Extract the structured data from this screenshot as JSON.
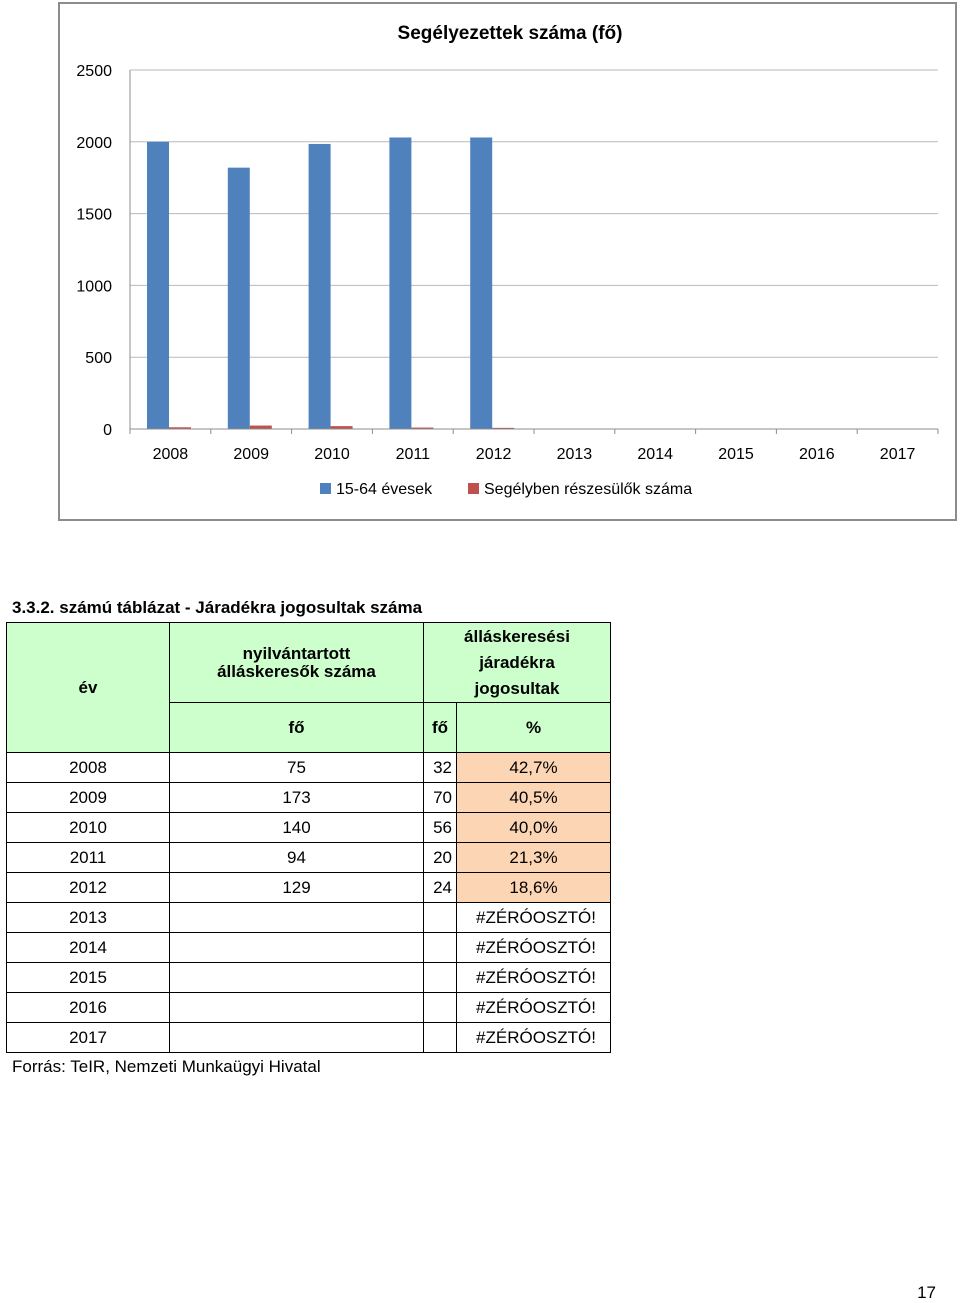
{
  "chart_data": {
    "type": "bar",
    "title": "Segélyezettek száma (fő)",
    "categories": [
      "2008",
      "2009",
      "2010",
      "2011",
      "2012",
      "2013",
      "2014",
      "2015",
      "2016",
      "2017"
    ],
    "series": [
      {
        "name": "15-64 évesek",
        "color": "#4f81bd",
        "values": [
          2000,
          1820,
          1985,
          2030,
          2030,
          null,
          null,
          null,
          null,
          null
        ]
      },
      {
        "name": "Segélyben részesülők száma",
        "color": "#c0504d",
        "values": [
          12,
          24,
          20,
          10,
          8,
          null,
          null,
          null,
          null,
          null
        ]
      }
    ],
    "ylim": [
      0,
      2500
    ],
    "yticks": [
      0,
      500,
      1000,
      1500,
      2000,
      2500
    ],
    "grid": true,
    "legend": "bottom"
  },
  "table": {
    "caption": "3.3.2. számú táblázat - Járadékra jogosultak száma",
    "col_year": "év",
    "col_registered": "nyilvántartott álláskeresők száma",
    "col_eligible": "álláskeresési járadékra jogosultak",
    "unit_registered": "fő",
    "unit_eligible": "fő",
    "unit_percent": "%",
    "rows": [
      {
        "year": "2008",
        "registered": "75",
        "eligible": "32",
        "percent": "42,7%"
      },
      {
        "year": "2009",
        "registered": "173",
        "eligible": "70",
        "percent": "40,5%"
      },
      {
        "year": "2010",
        "registered": "140",
        "eligible": "56",
        "percent": "40,0%"
      },
      {
        "year": "2011",
        "registered": "94",
        "eligible": "20",
        "percent": "21,3%"
      },
      {
        "year": "2012",
        "registered": "129",
        "eligible": "24",
        "percent": "18,6%"
      },
      {
        "year": "2013",
        "registered": "",
        "eligible": "",
        "percent": "#ZÉRÓOSZTÓ!"
      },
      {
        "year": "2014",
        "registered": "",
        "eligible": "",
        "percent": "#ZÉRÓOSZTÓ!"
      },
      {
        "year": "2015",
        "registered": "",
        "eligible": "",
        "percent": "#ZÉRÓOSZTÓ!"
      },
      {
        "year": "2016",
        "registered": "",
        "eligible": "",
        "percent": "#ZÉRÓOSZTÓ!"
      },
      {
        "year": "2017",
        "registered": "",
        "eligible": "",
        "percent": "#ZÉRÓOSZTÓ!"
      }
    ],
    "source": "Forrás: TeIR, Nemzeti Munkaügyi Hivatal"
  },
  "page_number": "17"
}
